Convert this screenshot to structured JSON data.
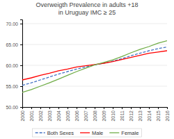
{
  "chart_data": {
    "type": "line",
    "title": "Overweigth Prevalence in adults +18\nin Uruguay IMC ≥ 25",
    "x": [
      2000,
      2001,
      2002,
      2003,
      2004,
      2005,
      2006,
      2007,
      2008,
      2009,
      2010,
      2011,
      2012,
      2013,
      2014,
      2015,
      2016
    ],
    "series": [
      {
        "name": "Both Sexes",
        "color": "#4472C4",
        "line_style": "dashed",
        "values": [
          55.2,
          55.8,
          56.5,
          57.2,
          57.9,
          58.5,
          59.1,
          59.6,
          60.1,
          60.5,
          61.0,
          61.6,
          62.3,
          62.9,
          63.5,
          64.0,
          64.4
        ]
      },
      {
        "name": "Male",
        "color": "#FF0000",
        "line_style": "solid",
        "values": [
          56.5,
          57.0,
          57.6,
          58.1,
          58.7,
          59.1,
          59.6,
          59.9,
          60.2,
          60.5,
          60.9,
          61.4,
          61.9,
          62.4,
          62.9,
          63.2,
          63.5
        ]
      },
      {
        "name": "Female",
        "color": "#70AD47",
        "line_style": "solid",
        "values": [
          53.5,
          54.2,
          55.0,
          55.8,
          56.7,
          57.6,
          58.5,
          59.3,
          60.1,
          60.7,
          61.3,
          62.1,
          63.0,
          63.8,
          64.5,
          65.3,
          65.9
        ]
      }
    ],
    "xlim": [
      2000,
      2016
    ],
    "xticks": [
      2000,
      2001,
      2002,
      2003,
      2004,
      2005,
      2006,
      2007,
      2008,
      2009,
      2010,
      2011,
      2012,
      2013,
      2014,
      2015,
      2016
    ],
    "ylim": [
      50,
      71
    ],
    "yticks": [
      {
        "value": 50,
        "label": "50.00"
      },
      {
        "value": 55,
        "label": "55.00"
      },
      {
        "value": 60,
        "label": "60.00"
      },
      {
        "value": 65,
        "label": "65.00"
      },
      {
        "value": 70,
        "label": "70.00"
      }
    ],
    "grid": true,
    "legend": "bottom"
  }
}
